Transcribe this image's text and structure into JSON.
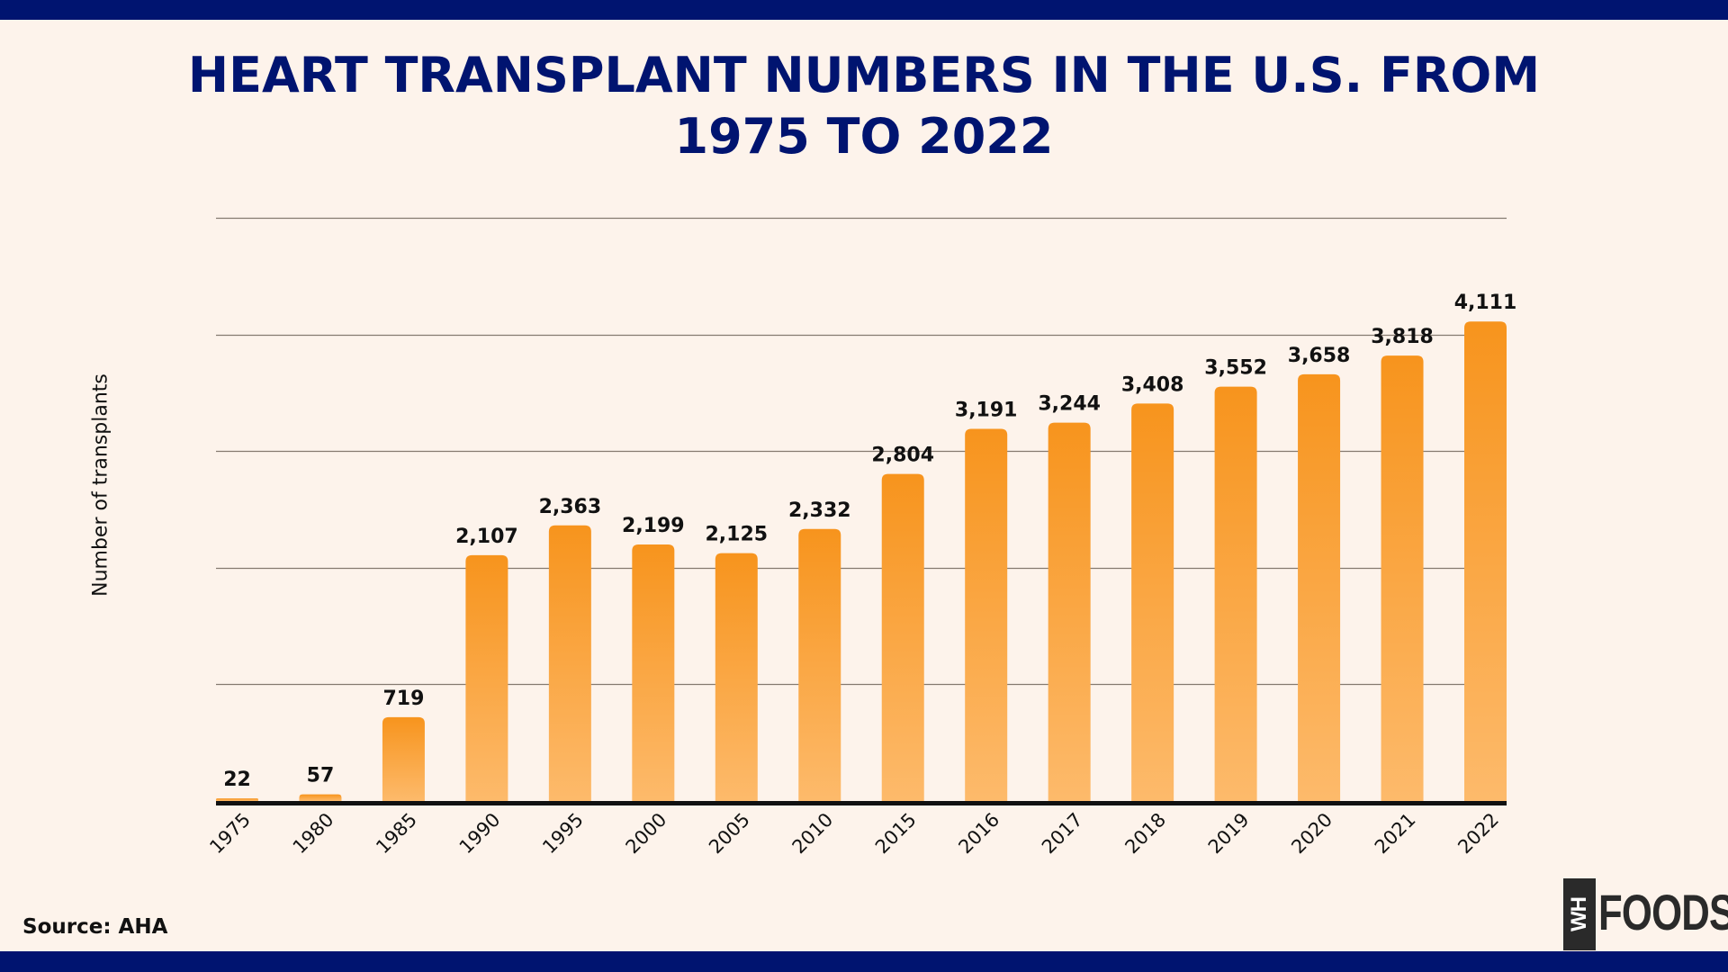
{
  "chart_data": {
    "type": "bar",
    "title": "HEART TRANSPLANT NUMBERS IN THE U.S. FROM 1975 TO 2022",
    "title_lines": [
      "HEART TRANSPLANT NUMBERS IN THE U.S. FROM",
      "1975 TO 2022"
    ],
    "xlabel": "",
    "ylabel": "Number of transplants",
    "categories": [
      "1975",
      "1980",
      "1985",
      "1990",
      "1995",
      "2000",
      "2005",
      "2010",
      "2015",
      "2016",
      "2017",
      "2018",
      "2019",
      "2020",
      "2021",
      "2022"
    ],
    "values": [
      22,
      57,
      719,
      2107,
      2363,
      2199,
      2125,
      2332,
      2804,
      3191,
      3244,
      3408,
      3552,
      3658,
      3818,
      4111
    ],
    "value_labels": [
      "22",
      "57",
      "719",
      "2,107",
      "2,363",
      "2,199",
      "2,125",
      "2,332",
      "2,804",
      "3,191",
      "3,244",
      "3,408",
      "3,552",
      "3,658",
      "3,818",
      "4,111"
    ],
    "ylim": [
      0,
      5000
    ],
    "gridlines": [
      1000,
      2000,
      3000,
      4000,
      5000
    ],
    "grid": true,
    "y_tick_labels_shown": false,
    "x_tick_rotation_deg": -45,
    "colors": {
      "bar_top": "#F7941D",
      "bar_bottom": "#FDBA6B",
      "grid": "#857a70",
      "axis": "#111111"
    }
  },
  "footer": {
    "source": "Source: AHA",
    "logo_box_text": "WH",
    "logo_word": "FOODS"
  },
  "theme": {
    "background": "#FDF3EB",
    "band": "#001470",
    "title_color": "#001470"
  }
}
